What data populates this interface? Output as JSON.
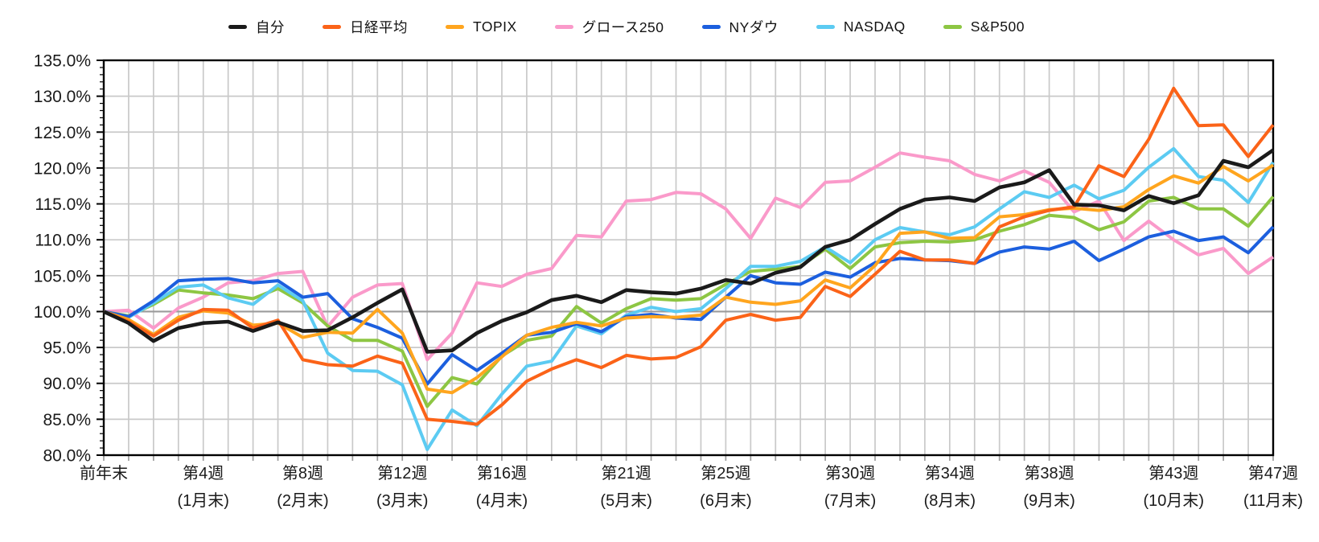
{
  "chart_data": {
    "type": "line",
    "title": "",
    "xlabel": "",
    "ylabel": "",
    "y_axis": {
      "min": 80,
      "max": 135,
      "major_step": 5,
      "minor_step": 1,
      "format": "percent_one_decimal"
    },
    "x_axis": {
      "unit": "week",
      "first_week": 0,
      "last_week": 47,
      "ticks": [
        {
          "week": 0,
          "label": "前年末",
          "sublabel": ""
        },
        {
          "week": 4,
          "label": "第4週",
          "sublabel": "(1月末)"
        },
        {
          "week": 8,
          "label": "第8週",
          "sublabel": "(2月末)"
        },
        {
          "week": 12,
          "label": "第12週",
          "sublabel": "(3月末)"
        },
        {
          "week": 16,
          "label": "第16週",
          "sublabel": "(4月末)"
        },
        {
          "week": 21,
          "label": "第21週",
          "sublabel": "(5月末)"
        },
        {
          "week": 25,
          "label": "第25週",
          "sublabel": "(6月末)"
        },
        {
          "week": 30,
          "label": "第30週",
          "sublabel": "(7月末)"
        },
        {
          "week": 34,
          "label": "第34週",
          "sublabel": "(8月末)"
        },
        {
          "week": 38,
          "label": "第38週",
          "sublabel": "(9月末)"
        },
        {
          "week": 43,
          "label": "第43週",
          "sublabel": "(10月末)"
        },
        {
          "week": 47,
          "label": "第47週",
          "sublabel": "(11月末)"
        }
      ]
    },
    "grid": {
      "vertical": true,
      "horizontal": true,
      "color": "#c9c9c9",
      "baseline_100_color": "#9b9b9b"
    },
    "legend_position": "top",
    "series": [
      {
        "key": "jibun",
        "name": "自分",
        "color": "#1a1a1a",
        "stroke_width": 4.6,
        "z": 7,
        "values": [
          100.0,
          98.4,
          95.9,
          97.7,
          98.4,
          98.6,
          97.3,
          98.5,
          97.3,
          97.4,
          99.2,
          101.2,
          103.1,
          94.4,
          94.6,
          97.0,
          98.7,
          99.9,
          101.6,
          102.2,
          101.3,
          103.0,
          102.7,
          102.5,
          103.2,
          104.4,
          103.9,
          105.4,
          106.2,
          109.0,
          110.0,
          112.2,
          114.3,
          115.6,
          115.9,
          115.4,
          117.3,
          118.0,
          119.7,
          114.9,
          114.8,
          114.1,
          116.1,
          115.1,
          116.2,
          121.0,
          120.1,
          122.5
        ]
      },
      {
        "key": "nikkei",
        "name": "日経平均",
        "color": "#fb6318",
        "stroke_width": 4.0,
        "z": 6,
        "values": [
          100.0,
          98.6,
          96.6,
          98.8,
          100.3,
          100.2,
          97.7,
          98.8,
          93.3,
          92.6,
          92.4,
          93.8,
          92.8,
          85.0,
          84.7,
          84.3,
          87.0,
          90.3,
          92.0,
          93.3,
          92.2,
          93.9,
          93.4,
          93.6,
          95.1,
          98.8,
          99.6,
          98.8,
          99.2,
          103.5,
          102.1,
          105.2,
          108.4,
          107.2,
          107.2,
          106.7,
          111.8,
          113.2,
          114.1,
          114.6,
          120.3,
          118.8,
          124.0,
          131.1,
          125.9,
          126.0,
          121.6,
          126.0
        ]
      },
      {
        "key": "topix",
        "name": "TOPIX",
        "color": "#ffa51e",
        "stroke_width": 4.0,
        "z": 5,
        "values": [
          100.0,
          98.9,
          96.8,
          99.2,
          100.1,
          99.8,
          98.1,
          98.4,
          96.4,
          97.1,
          97.0,
          100.3,
          97.0,
          89.2,
          88.7,
          90.8,
          93.7,
          96.7,
          97.8,
          98.5,
          98.0,
          99.1,
          99.3,
          99.2,
          99.5,
          102.0,
          101.3,
          101.0,
          101.5,
          104.4,
          103.3,
          106.4,
          110.9,
          111.1,
          110.2,
          110.3,
          113.2,
          113.5,
          114.2,
          114.4,
          114.1,
          114.6,
          117.0,
          118.9,
          117.9,
          120.2,
          118.2,
          120.4
        ]
      },
      {
        "key": "growth250",
        "name": "グロース250",
        "color": "#fa9aca",
        "stroke_width": 4.0,
        "z": 1,
        "values": [
          100.0,
          100.2,
          97.7,
          100.5,
          102.0,
          104.0,
          104.3,
          105.3,
          105.6,
          97.9,
          102.0,
          103.7,
          103.9,
          93.3,
          97.0,
          104.0,
          103.5,
          105.2,
          106.0,
          110.6,
          110.4,
          115.4,
          115.6,
          116.6,
          116.4,
          114.3,
          110.2,
          115.8,
          114.5,
          118.0,
          118.2,
          120.1,
          122.1,
          121.5,
          121.0,
          119.1,
          118.2,
          119.6,
          118.0,
          113.9,
          115.4,
          109.9,
          112.6,
          110.0,
          107.9,
          108.8,
          105.3,
          107.6
        ]
      },
      {
        "key": "nydow",
        "name": "NYダウ",
        "color": "#1c5fde",
        "stroke_width": 4.0,
        "z": 4,
        "values": [
          100.0,
          99.3,
          101.5,
          104.3,
          104.5,
          104.6,
          104.0,
          104.3,
          102.0,
          102.5,
          99.0,
          97.8,
          96.3,
          89.9,
          94.0,
          91.8,
          94.2,
          96.7,
          97.1,
          98.3,
          97.2,
          99.3,
          99.6,
          99.1,
          98.9,
          102.0,
          105.0,
          104.0,
          103.8,
          105.5,
          104.8,
          106.8,
          107.4,
          107.2,
          107.1,
          106.7,
          108.3,
          109.0,
          108.7,
          109.8,
          107.1,
          108.7,
          110.4,
          111.2,
          109.9,
          110.4,
          108.2,
          111.8
        ]
      },
      {
        "key": "nasdaq",
        "name": "NASDAQ",
        "color": "#5ccbf2",
        "stroke_width": 4.0,
        "z": 3,
        "values": [
          100.0,
          99.2,
          101.2,
          103.4,
          103.7,
          101.9,
          101.0,
          103.7,
          101.5,
          94.2,
          91.8,
          91.7,
          89.8,
          80.8,
          86.3,
          84.1,
          88.5,
          92.4,
          93.1,
          98.0,
          96.9,
          99.5,
          100.6,
          100.0,
          100.4,
          103.2,
          106.3,
          106.3,
          107.0,
          109.0,
          106.8,
          110.0,
          111.7,
          111.1,
          110.7,
          111.8,
          114.3,
          116.7,
          115.9,
          117.6,
          115.7,
          116.9,
          120.1,
          122.7,
          118.8,
          118.3,
          115.2,
          120.8
        ]
      },
      {
        "key": "sp500",
        "name": "S&P500",
        "color": "#8dc643",
        "stroke_width": 4.0,
        "z": 2,
        "values": [
          100.0,
          99.4,
          101.0,
          103.0,
          102.6,
          102.3,
          101.8,
          103.2,
          101.2,
          98.0,
          96.0,
          96.0,
          94.5,
          86.8,
          90.8,
          89.9,
          93.8,
          96.0,
          96.6,
          100.7,
          98.4,
          100.4,
          101.8,
          101.6,
          101.8,
          103.8,
          105.6,
          105.9,
          106.3,
          108.7,
          106.0,
          109.0,
          109.6,
          109.8,
          109.7,
          110.0,
          111.2,
          112.1,
          113.4,
          113.1,
          111.4,
          112.5,
          115.4,
          115.9,
          114.3,
          114.3,
          111.9,
          116.0
        ]
      }
    ]
  }
}
